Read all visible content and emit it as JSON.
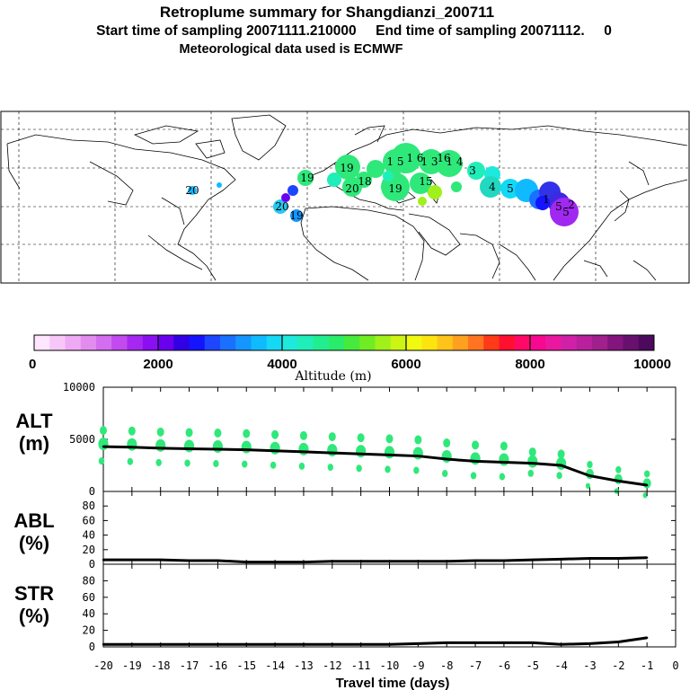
{
  "header": {
    "title": "Retroplume summary for Shangdianzi_200711",
    "sampling_line": "Start time of sampling 20071111.210000     End time of sampling 20071112.     0",
    "met_line": "Meteorological data used is ECMWF"
  },
  "colors": {
    "map_outline": "#000000",
    "plume_green": "#2fe87a",
    "line": "#000000",
    "colorbar": [
      "#ffe6ff",
      "#f7c8f7",
      "#eeaaf4",
      "#e38cf0",
      "#d46ef0",
      "#c24aee",
      "#a628f0",
      "#8a10f2",
      "#6a00ee",
      "#3200e4",
      "#1414ff",
      "#1e46ff",
      "#1a70ff",
      "#1596ff",
      "#10baff",
      "#14d8f4",
      "#1de9dc",
      "#20eeb8",
      "#22ee90",
      "#28ec6a",
      "#46ea3c",
      "#70ec22",
      "#a0f01a",
      "#ccf414",
      "#f0fa10",
      "#fce410",
      "#ffc41a",
      "#ffa020",
      "#ff7420",
      "#ff3a18",
      "#ff1030",
      "#ff0868",
      "#f80890",
      "#ea18a0",
      "#d020a8",
      "#b8209c",
      "#a0208e",
      "#84147e",
      "#68106e",
      "#4c0a5c"
    ]
  },
  "map": {
    "plume_labels": [
      {
        "label": "19",
        "color": "#2fe87a"
      },
      {
        "label": "19",
        "color": "#2fe87a"
      },
      {
        "label": "18",
        "color": "#2fe87a"
      },
      {
        "label": "20",
        "color": "#2fe87a"
      },
      {
        "label": "19",
        "color": "#2fe87a"
      },
      {
        "label": "1 5",
        "color": "#2fe87a"
      },
      {
        "label": "1 3",
        "color": "#2fe87a"
      },
      {
        "label": "1 4",
        "color": "#2fe87a"
      },
      {
        "label": "1 6",
        "color": "#2fe87a"
      },
      {
        "label": "15",
        "color": "#2fe87a"
      },
      {
        "label": "16",
        "color": "#2fe87a"
      },
      {
        "label": "3",
        "color": "#7be0c0"
      },
      {
        "label": "4",
        "color": "#33d0e0"
      },
      {
        "label": "5",
        "color": "#26c8f0"
      },
      {
        "label": "1",
        "color": "#2e3cd8"
      },
      {
        "label": "5",
        "color": "#3c2ae0"
      },
      {
        "label": "5",
        "color": "#a02ef0"
      },
      {
        "label": "2",
        "color": "#b040f0"
      },
      {
        "label": "20",
        "color": "#10d0f0"
      },
      {
        "label": "19",
        "color": "#1a60e0"
      },
      {
        "label": "20",
        "color": "#2fe87a"
      }
    ]
  },
  "colorbar": {
    "ticks": [
      "0",
      "2000",
      "4000",
      "6000",
      "8000",
      "10000"
    ],
    "label": "Altitude (m)"
  },
  "panels": [
    {
      "label": "ALT",
      "unit": "(m)",
      "ylim": [
        0,
        10000
      ],
      "ticks": [
        "10000",
        "5000",
        "0"
      ]
    },
    {
      "label": "ABL",
      "unit": "(%)",
      "ylim": [
        0,
        100
      ],
      "ticks": [
        "80",
        "60",
        "40",
        "20",
        "0"
      ]
    },
    {
      "label": "STR",
      "unit": "(%)",
      "ylim": [
        0,
        100
      ],
      "ticks": [
        "80",
        "60",
        "40",
        "20",
        "0"
      ]
    }
  ],
  "chart_data": [
    {
      "type": "line",
      "title": "ALT",
      "xlabel": "Travel time (days)",
      "ylabel": "(m)",
      "xlim": [
        -20,
        0
      ],
      "ylim": [
        0,
        10000
      ],
      "x": [
        -20,
        -19,
        -18,
        -17,
        -16,
        -15,
        -14,
        -13,
        -12,
        -11,
        -10,
        -9,
        -8,
        -7,
        -6,
        -5,
        -4,
        -3,
        -2,
        -1
      ],
      "series": [
        {
          "name": "ALT",
          "values": [
            4300,
            4250,
            4150,
            4100,
            4050,
            4000,
            3900,
            3800,
            3700,
            3600,
            3500,
            3400,
            3100,
            2900,
            2800,
            2700,
            2500,
            1500,
            1000,
            600
          ]
        }
      ]
    },
    {
      "type": "line",
      "title": "ABL",
      "xlabel": "Travel time (days)",
      "ylabel": "(%)",
      "xlim": [
        -20,
        0
      ],
      "ylim": [
        0,
        100
      ],
      "x": [
        -20,
        -19,
        -18,
        -17,
        -16,
        -15,
        -14,
        -13,
        -12,
        -11,
        -10,
        -9,
        -8,
        -7,
        -6,
        -5,
        -4,
        -3,
        -2,
        -1
      ],
      "series": [
        {
          "name": "ABL",
          "values": [
            6,
            6,
            6,
            5,
            5,
            3,
            3,
            3,
            4,
            4,
            4,
            4,
            4,
            5,
            5,
            6,
            7,
            8,
            8,
            9
          ]
        }
      ]
    },
    {
      "type": "line",
      "title": "STR",
      "xlabel": "Travel time (days)",
      "ylabel": "(%)",
      "xlim": [
        -20,
        0
      ],
      "ylim": [
        0,
        100
      ],
      "x": [
        -20,
        -19,
        -18,
        -17,
        -16,
        -15,
        -14,
        -13,
        -12,
        -11,
        -10,
        -9,
        -8,
        -7,
        -6,
        -5,
        -4,
        -3,
        -2,
        -1
      ],
      "series": [
        {
          "name": "STR",
          "values": [
            3,
            3,
            3,
            3,
            3,
            3,
            3,
            3,
            3,
            3,
            3,
            4,
            5,
            5,
            5,
            5,
            3,
            4,
            6,
            11
          ]
        }
      ]
    }
  ],
  "xaxis": {
    "ticks": [
      "-20",
      "-19",
      "-18",
      "-17",
      "-16",
      "-15",
      "-14",
      "-13",
      "-12",
      "-11",
      "-10",
      "-9",
      "-8",
      "-7",
      "-6",
      "-5",
      "-4",
      "-3",
      "-2",
      "-1",
      "0"
    ],
    "label": "Travel time (days)"
  }
}
